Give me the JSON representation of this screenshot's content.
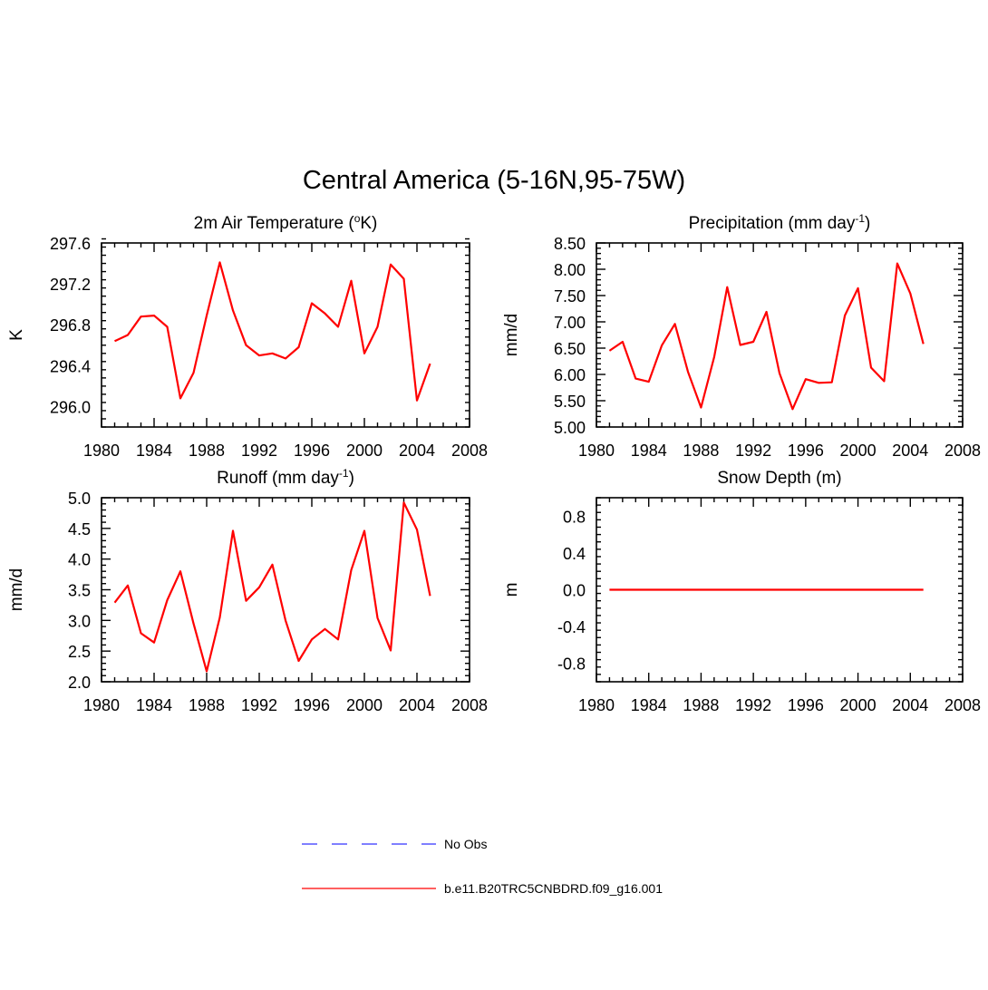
{
  "figure": {
    "title": "Central America (5-16N,95-75W)"
  },
  "legend": {
    "position": "bottom-center",
    "entries": [
      {
        "label": "No Obs",
        "color": "#5555ff",
        "style": "dashed"
      },
      {
        "label": "b.e11.B20TRC5CNBDRD.f09_g16.001",
        "color": "#ff0000",
        "style": "solid"
      }
    ]
  },
  "chart_data": [
    {
      "type": "line",
      "title_main": "2m Air Temperature (",
      "title_sup": "o",
      "title_after": "K)",
      "ylabel": "K",
      "xlim": [
        1980,
        2008
      ],
      "ylim": [
        295.8,
        297.6
      ],
      "xticks": [
        1980,
        1984,
        1988,
        1992,
        1996,
        2000,
        2004,
        2008
      ],
      "yticks": [
        296.0,
        296.4,
        296.8,
        297.2,
        297.6
      ],
      "ytick_labels": [
        "296.0",
        "296.4",
        "296.8",
        "297.2",
        "297.6"
      ],
      "series": [
        {
          "name": "b.e11.B20TRC5CNBDRD.f09_g16.001",
          "color": "#ff0000",
          "x": [
            1981,
            1982,
            1983,
            1984,
            1985,
            1986,
            1987,
            1988,
            1989,
            1990,
            1991,
            1992,
            1993,
            1994,
            1995,
            1996,
            1997,
            1998,
            1999,
            2000,
            2001,
            2002,
            2003,
            2004,
            2005
          ],
          "values": [
            296.64,
            296.7,
            296.88,
            296.89,
            296.78,
            296.08,
            296.33,
            296.89,
            297.41,
            296.94,
            296.6,
            296.5,
            296.52,
            296.47,
            296.58,
            297.01,
            296.91,
            296.78,
            297.23,
            296.52,
            296.78,
            297.39,
            297.25,
            296.06,
            296.42
          ]
        }
      ]
    },
    {
      "type": "line",
      "title_main": "Precipitation (mm day",
      "title_sup": "-1",
      "title_after": ")",
      "ylabel": "mm/d",
      "xlim": [
        1980,
        2008
      ],
      "ylim": [
        5.0,
        8.5
      ],
      "xticks": [
        1980,
        1984,
        1988,
        1992,
        1996,
        2000,
        2004,
        2008
      ],
      "yticks": [
        5.0,
        5.5,
        6.0,
        6.5,
        7.0,
        7.5,
        8.0,
        8.5
      ],
      "ytick_labels": [
        "5.00",
        "5.50",
        "6.00",
        "6.50",
        "7.00",
        "7.50",
        "8.00",
        "8.50"
      ],
      "series": [
        {
          "name": "b.e11.B20TRC5CNBDRD.f09_g16.001",
          "color": "#ff0000",
          "x": [
            1981,
            1982,
            1983,
            1984,
            1985,
            1986,
            1987,
            1988,
            1989,
            1990,
            1991,
            1992,
            1993,
            1994,
            1995,
            1996,
            1997,
            1998,
            1999,
            2000,
            2001,
            2002,
            2003,
            2004,
            2005
          ],
          "values": [
            6.45,
            6.62,
            5.92,
            5.86,
            6.55,
            6.96,
            6.05,
            5.37,
            6.33,
            7.66,
            6.56,
            6.62,
            7.19,
            6.02,
            5.34,
            5.91,
            5.84,
            5.85,
            7.12,
            7.64,
            6.13,
            5.87,
            8.11,
            7.54,
            6.58
          ]
        }
      ]
    },
    {
      "type": "line",
      "title_main": "Runoff (mm day",
      "title_sup": "-1",
      "title_after": ")",
      "ylabel": "mm/d",
      "xlim": [
        1980,
        2008
      ],
      "ylim": [
        2.0,
        5.0
      ],
      "xticks": [
        1980,
        1984,
        1988,
        1992,
        1996,
        2000,
        2004,
        2008
      ],
      "yticks": [
        2.0,
        2.5,
        3.0,
        3.5,
        4.0,
        4.5,
        5.0
      ],
      "ytick_labels": [
        "2.0",
        "2.5",
        "3.0",
        "3.5",
        "4.0",
        "4.5",
        "5.0"
      ],
      "series": [
        {
          "name": "b.e11.B20TRC5CNBDRD.f09_g16.001",
          "color": "#ff0000",
          "x": [
            1981,
            1982,
            1983,
            1984,
            1985,
            1986,
            1987,
            1988,
            1989,
            1990,
            1991,
            1992,
            1993,
            1994,
            1995,
            1996,
            1997,
            1998,
            1999,
            2000,
            2001,
            2002,
            2003,
            2004,
            2005
          ],
          "values": [
            3.29,
            3.57,
            2.79,
            2.64,
            3.33,
            3.8,
            2.95,
            2.17,
            3.05,
            4.46,
            3.32,
            3.54,
            3.91,
            3.0,
            2.34,
            2.69,
            2.86,
            2.69,
            3.82,
            4.46,
            3.04,
            2.51,
            4.92,
            4.48,
            3.4
          ]
        }
      ]
    },
    {
      "type": "line",
      "title_main": "Snow Depth (m)",
      "title_sup": "",
      "title_after": "",
      "ylabel": "m",
      "xlim": [
        1980,
        2008
      ],
      "ylim": [
        -1.0,
        1.0
      ],
      "xticks": [
        1980,
        1984,
        1988,
        1992,
        1996,
        2000,
        2004,
        2008
      ],
      "yticks": [
        -0.8,
        -0.4,
        0.0,
        0.4,
        0.8
      ],
      "ytick_labels": [
        "-0.8",
        "-0.4",
        "0.0",
        "0.4",
        "0.8"
      ],
      "series": [
        {
          "name": "b.e11.B20TRC5CNBDRD.f09_g16.001",
          "color": "#ff0000",
          "x": [
            1981,
            2005
          ],
          "values": [
            0.0,
            0.0
          ]
        }
      ]
    }
  ]
}
